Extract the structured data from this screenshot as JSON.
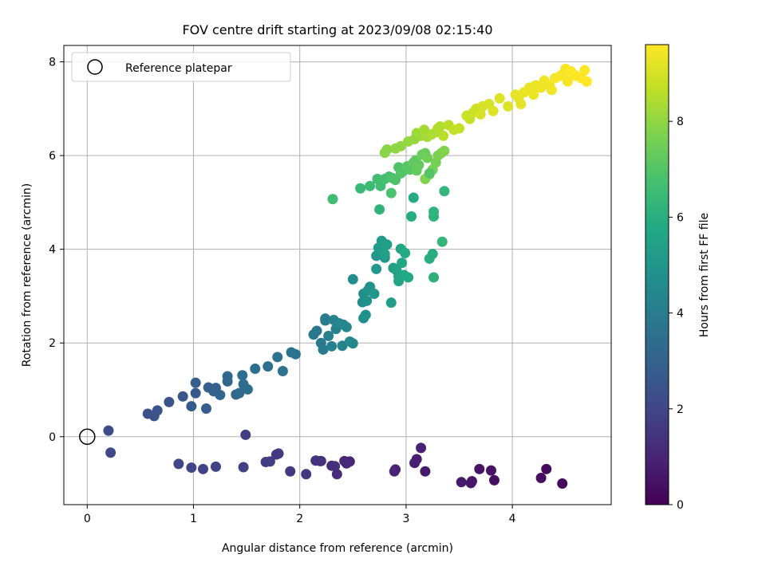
{
  "chart_data": {
    "type": "scatter",
    "title": "FOV centre drift starting at 2023/09/08 02:15:40",
    "xlabel": "Angular distance from reference (arcmin)",
    "ylabel": "Rotation from reference (arcmin)",
    "xlim": [
      -0.22,
      4.93
    ],
    "ylim": [
      -1.45,
      8.35
    ],
    "x_ticks": [
      0,
      1,
      2,
      3,
      4
    ],
    "y_ticks": [
      0,
      2,
      4,
      6,
      8
    ],
    "grid": true,
    "legend": {
      "placement": "top-left",
      "entries": [
        "Reference platepar"
      ]
    },
    "reference_point": {
      "x": 0,
      "y": 0
    },
    "colorbar": {
      "label": "Hours from first FF file",
      "min": 0,
      "max": 9.6,
      "ticks": [
        0,
        2,
        4,
        6,
        8
      ],
      "colormap": "viridis"
    },
    "series": [
      {
        "x": [
          4.47,
          4.32,
          4.27,
          3.83,
          3.8,
          3.69,
          3.62,
          3.61,
          3.52,
          3.18,
          3.1,
          3.08,
          3.14,
          2.9,
          2.89,
          2.47,
          2.42,
          2.44,
          2.35,
          2.3,
          2.33,
          2.2,
          2.15,
          2.19,
          2.06,
          1.91,
          1.8,
          1.78,
          1.72,
          1.68,
          1.47,
          1.49,
          1.21,
          1.09,
          0.98,
          0.86
        ],
        "y": [
          -1.0,
          -0.69,
          -0.88,
          -0.93,
          -0.72,
          -0.69,
          -0.95,
          -0.99,
          -0.97,
          -0.74,
          -0.48,
          -0.56,
          -0.24,
          -0.7,
          -0.74,
          -0.53,
          -0.52,
          -0.57,
          -0.8,
          -0.62,
          -0.63,
          -0.52,
          -0.51,
          -0.52,
          -0.8,
          -0.74,
          -0.36,
          -0.38,
          -0.53,
          -0.54,
          -0.65,
          0.04,
          -0.64,
          -0.69,
          -0.66,
          -0.58
        ],
        "hours": [
          0.3,
          0.3,
          0.4,
          0.4,
          0.5,
          0.5,
          0.6,
          0.6,
          0.7,
          0.7,
          0.8,
          0.8,
          0.9,
          0.9,
          1.0,
          1.0,
          1.1,
          1.1,
          1.2,
          1.2,
          1.3,
          1.3,
          1.4,
          1.4,
          1.5,
          1.5,
          1.6,
          1.6,
          1.7,
          1.7,
          1.8,
          1.8,
          1.9,
          1.9,
          2.0,
          2.0
        ]
      },
      {
        "x": [
          0.22,
          0.2,
          0.57,
          0.63,
          0.66,
          0.77,
          0.9,
          0.98,
          1.02,
          1.02,
          1.12,
          1.14,
          1.19,
          1.21,
          1.25,
          1.32,
          1.32,
          1.4,
          1.43,
          1.47,
          1.46,
          1.51,
          1.58,
          1.7,
          1.79,
          1.84,
          1.92,
          1.96,
          2.13,
          2.16,
          2.2,
          2.22,
          2.24,
          2.24,
          2.27,
          2.3,
          2.32,
          2.34,
          2.37,
          2.4,
          2.41,
          2.44,
          2.47,
          2.5
        ],
        "y": [
          -0.34,
          0.13,
          0.49,
          0.44,
          0.56,
          0.74,
          0.86,
          0.65,
          0.93,
          1.15,
          0.6,
          1.05,
          0.97,
          1.04,
          0.89,
          1.18,
          1.29,
          0.9,
          0.93,
          1.12,
          1.31,
          1.01,
          1.45,
          1.5,
          1.7,
          1.4,
          1.8,
          1.76,
          2.18,
          2.26,
          2.0,
          1.86,
          2.52,
          2.48,
          2.15,
          1.93,
          2.49,
          2.3,
          2.42,
          1.94,
          2.39,
          2.34,
          2.03,
          1.99
        ],
        "hours": [
          2.1,
          2.2,
          2.3,
          2.4,
          2.4,
          2.5,
          2.6,
          2.7,
          2.7,
          2.8,
          2.8,
          2.9,
          3.0,
          3.0,
          3.1,
          3.1,
          3.2,
          3.2,
          3.3,
          3.3,
          3.4,
          3.4,
          3.5,
          3.5,
          3.6,
          3.6,
          3.7,
          3.7,
          3.8,
          3.8,
          3.9,
          3.9,
          4.0,
          4.0,
          4.1,
          4.1,
          4.2,
          4.2,
          4.3,
          4.3,
          4.4,
          4.4,
          4.5,
          4.5
        ]
      },
      {
        "x": [
          2.5,
          2.59,
          2.6,
          2.6,
          2.62,
          2.63,
          2.64,
          2.66,
          2.7,
          2.72,
          2.72,
          2.8,
          2.77,
          2.74,
          2.86,
          2.88,
          2.82,
          2.8,
          2.91,
          2.93,
          2.93,
          2.95,
          2.96,
          2.98,
          2.99,
          3.02,
          3.05,
          3.07,
          3.22,
          3.25,
          3.26,
          3.26,
          3.26,
          3.34,
          3.36
        ],
        "y": [
          3.36,
          2.87,
          3.05,
          2.53,
          2.6,
          2.9,
          3.12,
          3.2,
          3.05,
          3.86,
          3.58,
          3.82,
          4.18,
          4.03,
          2.86,
          3.6,
          4.1,
          3.9,
          3.55,
          3.42,
          3.32,
          4.01,
          3.71,
          3.45,
          3.92,
          3.4,
          4.7,
          5.1,
          3.8,
          3.9,
          3.4,
          4.7,
          4.8,
          4.16,
          5.24
        ],
        "hours": [
          4.6,
          4.6,
          4.7,
          4.7,
          4.8,
          4.8,
          4.9,
          4.9,
          5.0,
          5.0,
          5.1,
          5.1,
          5.2,
          5.2,
          5.3,
          5.3,
          5.4,
          5.4,
          5.5,
          5.5,
          5.6,
          5.6,
          5.7,
          5.7,
          5.8,
          5.8,
          5.9,
          5.9,
          6.0,
          6.0,
          6.1,
          6.1,
          6.2,
          6.3,
          6.3
        ]
      },
      {
        "x": [
          2.57,
          2.66,
          2.73,
          2.76,
          2.8,
          2.84,
          2.87,
          2.86,
          2.9,
          2.93,
          2.95,
          2.98,
          3.01,
          3.04,
          3.07,
          3.09,
          3.1,
          3.12,
          3.15,
          3.18,
          3.2,
          3.22,
          3.25,
          3.28,
          3.3,
          3.33,
          3.36,
          3.18,
          2.31,
          3.22,
          2.75
        ],
        "y": [
          5.3,
          5.35,
          5.5,
          5.35,
          5.5,
          5.55,
          5.52,
          5.2,
          5.48,
          5.75,
          5.62,
          5.68,
          5.77,
          5.7,
          5.85,
          5.9,
          5.68,
          5.8,
          6.02,
          6.05,
          5.95,
          5.6,
          5.7,
          5.85,
          6.0,
          6.05,
          6.1,
          5.5,
          5.07,
          5.62,
          4.85
        ],
        "hours": [
          6.4,
          6.5,
          6.6,
          6.6,
          6.7,
          6.7,
          6.8,
          6.8,
          6.9,
          6.9,
          7.0,
          7.0,
          7.1,
          7.1,
          7.2,
          7.2,
          7.3,
          7.3,
          7.4,
          7.4,
          7.5,
          7.5,
          7.6,
          7.6,
          7.7,
          7.7,
          7.8,
          7.8,
          6.6,
          7.0,
          6.2
        ]
      },
      {
        "x": [
          2.8,
          2.82,
          2.9,
          2.95,
          3.02,
          3.08,
          3.1,
          3.14,
          3.17,
          3.2,
          3.24,
          3.28,
          3.3,
          3.32,
          3.35,
          3.4,
          3.45,
          3.5,
          3.57,
          3.6,
          3.63,
          3.66,
          3.7,
          3.72,
          3.78,
          3.82,
          3.88,
          3.96,
          4.03,
          4.06,
          4.08,
          4.11,
          4.16,
          4.2,
          4.22,
          4.27,
          4.3,
          4.35,
          4.37,
          4.4,
          4.45,
          4.48,
          4.5,
          4.52,
          4.55,
          4.58,
          4.6,
          4.65,
          4.68,
          4.7
        ],
        "y": [
          6.06,
          6.13,
          6.15,
          6.2,
          6.3,
          6.35,
          6.48,
          6.42,
          6.55,
          6.4,
          6.45,
          6.5,
          6.58,
          6.62,
          6.42,
          6.65,
          6.55,
          6.58,
          6.85,
          6.78,
          6.92,
          7.0,
          6.88,
          7.05,
          7.1,
          6.95,
          7.22,
          7.05,
          7.3,
          7.22,
          7.1,
          7.35,
          7.45,
          7.3,
          7.5,
          7.45,
          7.6,
          7.5,
          7.4,
          7.65,
          7.7,
          7.75,
          7.85,
          7.58,
          7.8,
          7.72,
          7.7,
          7.65,
          7.82,
          7.58
        ],
        "hours": [
          7.9,
          7.9,
          8.0,
          8.0,
          8.1,
          8.1,
          8.2,
          8.2,
          8.3,
          8.3,
          8.4,
          8.4,
          8.5,
          8.5,
          8.6,
          8.6,
          8.7,
          8.7,
          8.8,
          8.8,
          8.9,
          8.9,
          9.0,
          9.0,
          9.0,
          9.1,
          9.1,
          9.1,
          9.2,
          9.2,
          9.2,
          9.3,
          9.3,
          9.3,
          9.3,
          9.4,
          9.4,
          9.4,
          9.4,
          9.5,
          9.5,
          9.5,
          9.5,
          9.5,
          9.6,
          9.6,
          9.6,
          9.6,
          9.6,
          9.6
        ]
      }
    ]
  }
}
